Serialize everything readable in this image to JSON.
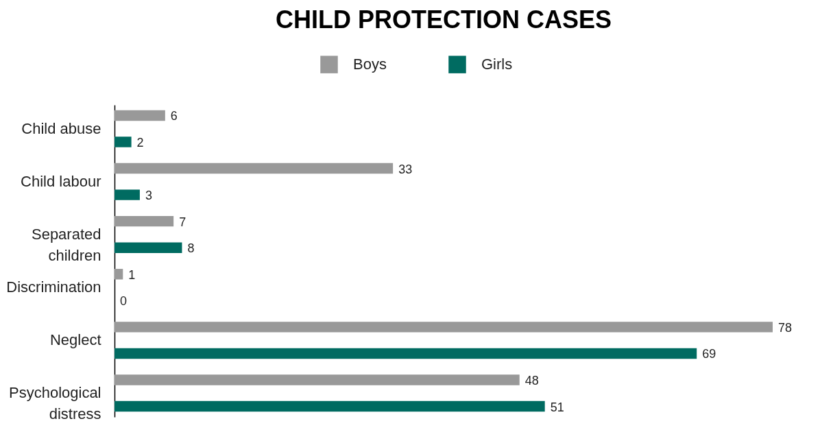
{
  "chart_data": {
    "type": "bar",
    "orientation": "horizontal",
    "title": "CHILD PROTECTION CASES",
    "categories": [
      "Child abuse",
      "Child labour",
      "Separated children",
      "Discrimination",
      "Neglect",
      "Psychological distress"
    ],
    "series": [
      {
        "name": "Boys",
        "color": "#999999",
        "values": [
          6,
          33,
          7,
          1,
          78,
          48
        ]
      },
      {
        "name": "Girls",
        "color": "#006b61",
        "values": [
          2,
          3,
          8,
          0,
          69,
          51
        ]
      }
    ],
    "data_labels": true,
    "legend": "top",
    "tick_labels": "y"
  }
}
